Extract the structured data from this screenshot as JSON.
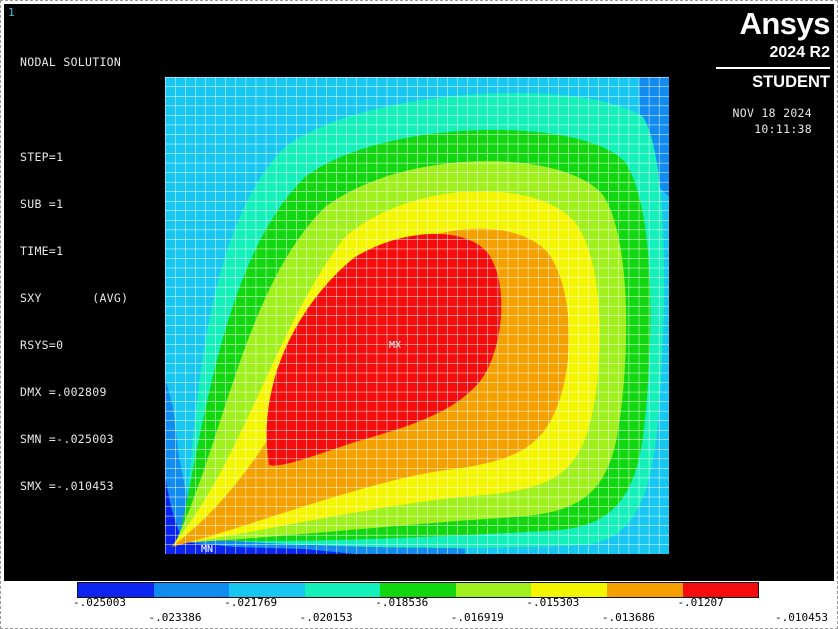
{
  "window_number": "1",
  "header": {
    "title": "NODAL SOLUTION",
    "info_lines": [
      "STEP=1",
      "SUB =1",
      "TIME=1",
      "SXY       (AVG)",
      "RSYS=0",
      "DMX =.002809",
      "SMN =-.025003",
      "SMX =-.010453"
    ]
  },
  "branding": {
    "logo": "Ansys",
    "version": "2024 R2",
    "edition": "STUDENT"
  },
  "timestamp": {
    "date": "NOV 18 2024",
    "time": "10:11:38"
  },
  "plot": {
    "max_marker": "MX",
    "min_marker": "MN"
  },
  "legend": {
    "colors": [
      "#0b24f0",
      "#128bf0",
      "#18c6f2",
      "#14f0ba",
      "#12d60f",
      "#9ff01c",
      "#f4f600",
      "#f4a100",
      "#f50c0c"
    ],
    "tick_values": [
      "-.025003",
      "-.023386",
      "-.021769",
      "-.020153",
      "-.018536",
      "-.016919",
      "-.015303",
      "-.013686",
      "-.01207",
      "-.010453"
    ]
  }
}
